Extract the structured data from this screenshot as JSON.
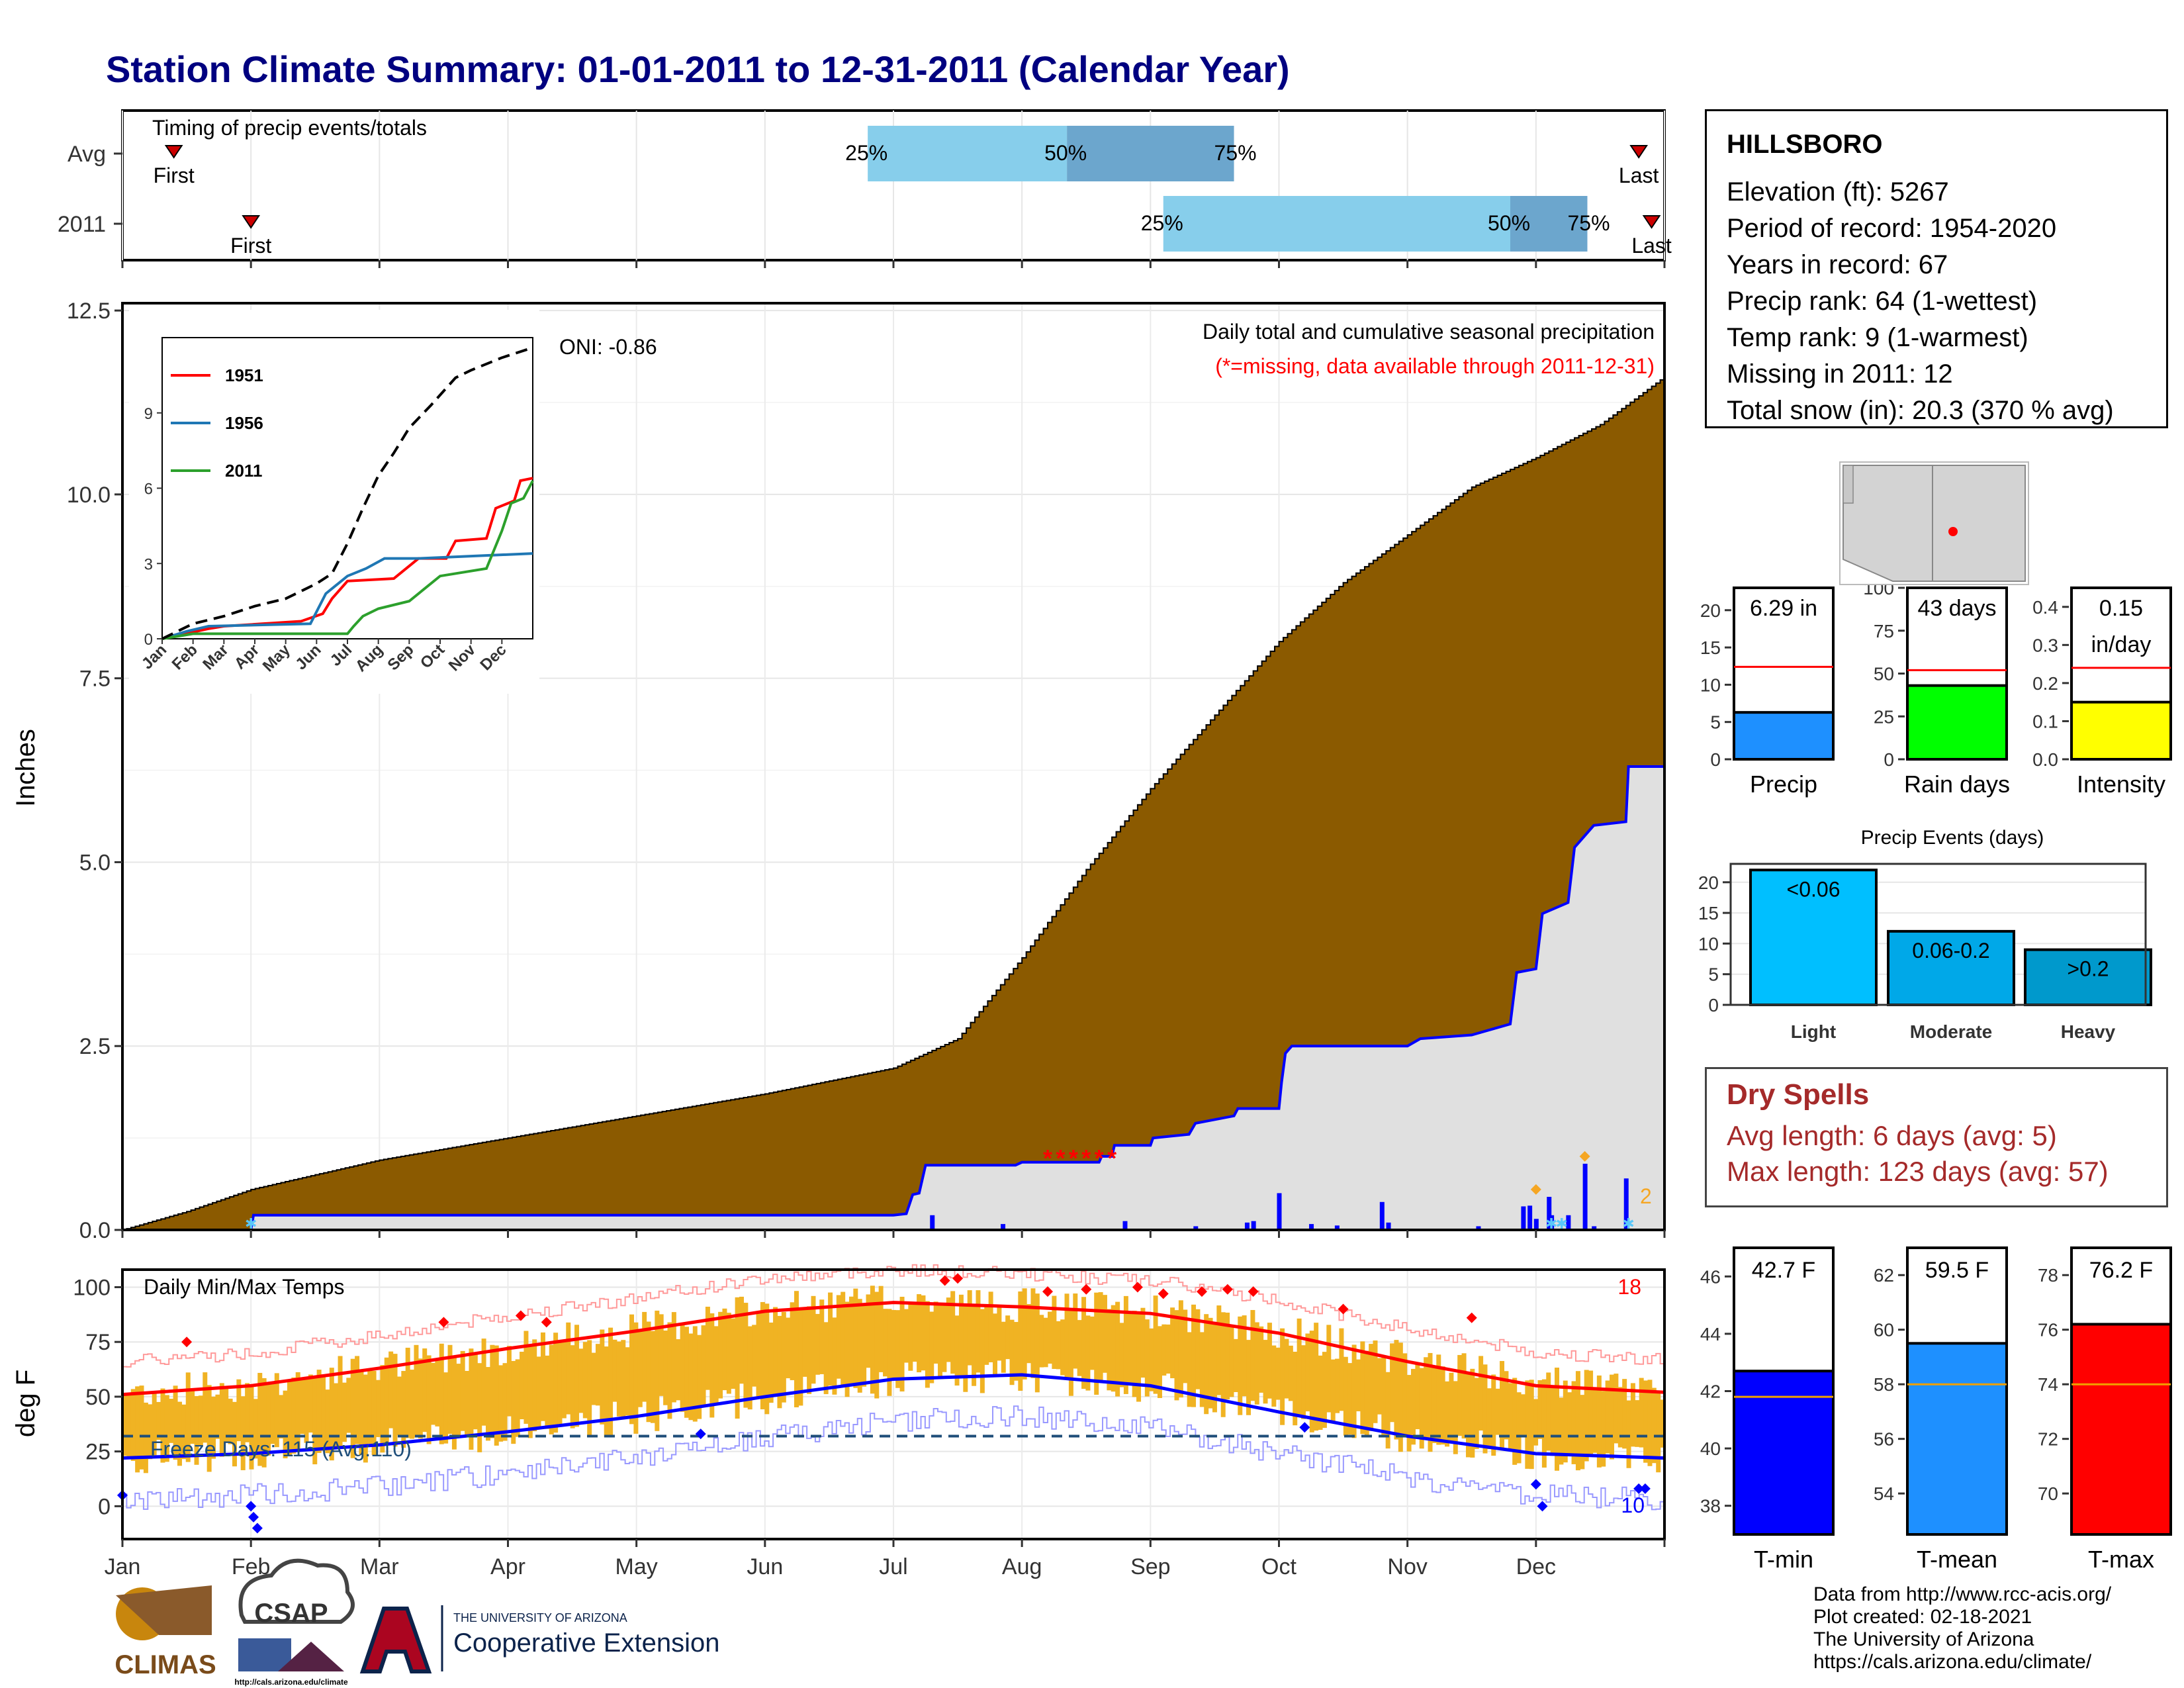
{
  "title": "Station Climate Summary: 01-01-2011 to 12-31-2011 (Calendar Year)",
  "colors": {
    "title": "#000080",
    "precip_fill": "#8B5A00",
    "cum_line": "#0000ff",
    "quartile_light": "#87CEEB",
    "quartile_dark": "#6CA6CD",
    "dry_text": "#a52a2a",
    "tmax": "#ff0000",
    "tmin": "#0000ff",
    "daily_bar": "#F0B323"
  },
  "timing": {
    "title": "Timing of precip events/totals",
    "rows": [
      {
        "label": "Avg",
        "first_month": 0.4,
        "last_month": 11.8,
        "q25": 5.8,
        "q50": 7.35,
        "q75": 8.65,
        "first_label": "First",
        "last_label": "Last",
        "p25": "25%",
        "p50": "50%",
        "p75": "75%"
      },
      {
        "label": "2011",
        "first_month": 1.0,
        "last_month": 11.9,
        "q25": 8.1,
        "q50": 10.8,
        "q75": 11.4,
        "first_label": "First",
        "last_label": "Last",
        "p25": "25%",
        "p50": "50%",
        "p75": "75%"
      }
    ]
  },
  "station": {
    "name": "HILLSBORO",
    "lines": [
      "Elevation (ft): 5267",
      "Period of record: 1954-2020",
      "Years in record: 67",
      "Precip rank: 64 (1-wettest)",
      "Temp rank: 9 (1-warmest)",
      "Missing in 2011: 12",
      "Total snow (in): 20.3 (370 % avg)"
    ]
  },
  "main_chart": {
    "ylabel": "Inches",
    "legend_title": "Daily total and cumulative seasonal precipitation",
    "missing_note": "(*=missing, data available through 2011-12-31)",
    "oni": "ONI: -0.86",
    "count_label": "2",
    "yticks": [
      "0.0",
      "2.5",
      "5.0",
      "7.5",
      "10.0",
      "12.5"
    ],
    "ylim": [
      0,
      12.6
    ],
    "avg_cumulative": [
      [
        0,
        0
      ],
      [
        0.5,
        0.25
      ],
      [
        1,
        0.55
      ],
      [
        2,
        0.95
      ],
      [
        3,
        1.25
      ],
      [
        4,
        1.55
      ],
      [
        5,
        1.85
      ],
      [
        6,
        2.2
      ],
      [
        6.5,
        2.6
      ],
      [
        7,
        3.7
      ],
      [
        7.5,
        4.9
      ],
      [
        8,
        6.0
      ],
      [
        8.5,
        7.0
      ],
      [
        9,
        8.0
      ],
      [
        9.5,
        8.8
      ],
      [
        10,
        9.45
      ],
      [
        10.5,
        10.1
      ],
      [
        11,
        10.5
      ],
      [
        11.5,
        10.95
      ],
      [
        12,
        11.6
      ]
    ],
    "obs_cumulative": [
      [
        0,
        0
      ],
      [
        1.0,
        0.0
      ],
      [
        1.02,
        0.2
      ],
      [
        6.0,
        0.2
      ],
      [
        6.1,
        0.22
      ],
      [
        6.15,
        0.48
      ],
      [
        6.2,
        0.5
      ],
      [
        6.25,
        0.88
      ],
      [
        6.95,
        0.88
      ],
      [
        7.0,
        0.92
      ],
      [
        7.6,
        0.92
      ],
      [
        7.62,
        1.0
      ],
      [
        7.7,
        1.0
      ],
      [
        7.72,
        1.15
      ],
      [
        8.0,
        1.15
      ],
      [
        8.02,
        1.25
      ],
      [
        8.3,
        1.3
      ],
      [
        8.35,
        1.45
      ],
      [
        8.65,
        1.55
      ],
      [
        8.68,
        1.65
      ],
      [
        9.0,
        1.65
      ],
      [
        9.02,
        2.0
      ],
      [
        9.05,
        2.4
      ],
      [
        9.1,
        2.5
      ],
      [
        10.0,
        2.5
      ],
      [
        10.1,
        2.6
      ],
      [
        10.5,
        2.65
      ],
      [
        10.8,
        2.8
      ],
      [
        10.85,
        3.5
      ],
      [
        11.0,
        3.55
      ],
      [
        11.05,
        4.3
      ],
      [
        11.25,
        4.45
      ],
      [
        11.3,
        5.2
      ],
      [
        11.4,
        5.4
      ],
      [
        11.45,
        5.5
      ],
      [
        11.7,
        5.55
      ],
      [
        11.72,
        6.3
      ],
      [
        12.0,
        6.3
      ]
    ],
    "daily_bars": [
      [
        6.3,
        0.2
      ],
      [
        6.85,
        0.08
      ],
      [
        7.8,
        0.12
      ],
      [
        8.35,
        0.05
      ],
      [
        8.75,
        0.1
      ],
      [
        8.8,
        0.12
      ],
      [
        9.0,
        0.5
      ],
      [
        9.25,
        0.08
      ],
      [
        9.45,
        0.06
      ],
      [
        9.8,
        0.38
      ],
      [
        9.85,
        0.1
      ],
      [
        10.55,
        0.05
      ],
      [
        10.9,
        0.32
      ],
      [
        10.95,
        0.33
      ],
      [
        11.0,
        0.15
      ],
      [
        11.1,
        0.45
      ],
      [
        11.12,
        0.2
      ],
      [
        11.25,
        0.2
      ],
      [
        11.38,
        0.9
      ],
      [
        11.45,
        0.05
      ],
      [
        11.7,
        0.7
      ]
    ],
    "missing_days": [
      7.2,
      7.3,
      7.4,
      7.5,
      7.6,
      7.7
    ],
    "event_markers": [
      11.17,
      11.55
    ]
  },
  "inset": {
    "legend": [
      "1951",
      "1956",
      "2011"
    ],
    "yticks": [
      "0",
      "3",
      "6",
      "9"
    ],
    "months": [
      "Jan",
      "Feb",
      "Mar",
      "Apr",
      "May",
      "Jun",
      "Jul",
      "Aug",
      "Sep",
      "Oct",
      "Nov",
      "Dec"
    ],
    "series": [
      {
        "name": "1951",
        "color": "#ff0000",
        "points": [
          [
            0,
            0
          ],
          [
            1.5,
            0.4
          ],
          [
            2,
            0.5
          ],
          [
            4.5,
            0.7
          ],
          [
            5.2,
            1.0
          ],
          [
            5.5,
            1.6
          ],
          [
            6,
            2.3
          ],
          [
            7.5,
            2.4
          ],
          [
            8.3,
            3.2
          ],
          [
            9.2,
            3.2
          ],
          [
            9.5,
            3.9
          ],
          [
            10.5,
            4.0
          ],
          [
            10.8,
            5.2
          ],
          [
            11.4,
            5.5
          ],
          [
            11.6,
            6.3
          ],
          [
            12,
            6.4
          ]
        ]
      },
      {
        "name": "1956",
        "color": "#1f77b4",
        "points": [
          [
            0,
            0
          ],
          [
            0.8,
            0.3
          ],
          [
            1.5,
            0.5
          ],
          [
            4.8,
            0.6
          ],
          [
            5.3,
            1.8
          ],
          [
            6,
            2.5
          ],
          [
            6.6,
            2.8
          ],
          [
            7.2,
            3.2
          ],
          [
            8.3,
            3.2
          ],
          [
            12,
            3.4
          ]
        ]
      },
      {
        "name": "2011",
        "color": "#2ca02c",
        "points": [
          [
            0,
            0
          ],
          [
            1,
            0.2
          ],
          [
            6,
            0.2
          ],
          [
            6.2,
            0.5
          ],
          [
            6.5,
            0.9
          ],
          [
            7,
            1.2
          ],
          [
            8,
            1.5
          ],
          [
            9,
            2.5
          ],
          [
            10.5,
            2.8
          ],
          [
            11,
            4.3
          ],
          [
            11.3,
            5.4
          ],
          [
            11.7,
            5.6
          ],
          [
            12,
            6.3
          ]
        ]
      },
      {
        "name": "avg",
        "color": "#000000",
        "points": [
          [
            0,
            0
          ],
          [
            1,
            0.6
          ],
          [
            2,
            0.9
          ],
          [
            3,
            1.3
          ],
          [
            4,
            1.6
          ],
          [
            5,
            2.2
          ],
          [
            5.5,
            2.6
          ],
          [
            6,
            3.8
          ],
          [
            6.5,
            5.2
          ],
          [
            7,
            6.5
          ],
          [
            7.5,
            7.4
          ],
          [
            8,
            8.4
          ],
          [
            8.7,
            9.3
          ],
          [
            9.5,
            10.4
          ],
          [
            10,
            10.7
          ],
          [
            11,
            11.2
          ],
          [
            12,
            11.6
          ]
        ]
      }
    ]
  },
  "precip_summary": [
    {
      "label": "Precip",
      "value_text": "6.29 in",
      "value": 6.29,
      "avg": 12.4,
      "ymax": 23,
      "yticks": [
        "0",
        "5",
        "10",
        "15",
        "20"
      ],
      "tickvals": [
        0,
        5,
        10,
        15,
        20
      ],
      "color": "#1E90FF"
    },
    {
      "label": "Rain days",
      "value_text": "43 days",
      "value": 43,
      "avg": 52,
      "ymax": 100,
      "yticks": [
        "0",
        "25",
        "50",
        "75",
        "100"
      ],
      "tickvals": [
        0,
        25,
        50,
        75,
        100
      ],
      "color": "#00FF00"
    },
    {
      "label": "Intensity",
      "value_text": "0.15",
      "value_text2": "in/day",
      "value": 0.15,
      "avg": 0.24,
      "ymax": 0.45,
      "yticks": [
        "0.0",
        "0.1",
        "0.2",
        "0.3",
        "0.4"
      ],
      "tickvals": [
        0,
        0.1,
        0.2,
        0.3,
        0.4
      ],
      "color": "#FFFF00"
    }
  ],
  "precip_events": {
    "title": "Precip Events (days)",
    "yticks": [
      "0",
      "5",
      "10",
      "15",
      "20"
    ],
    "bars": [
      {
        "label": "Light",
        "value": 22,
        "text": "<0.06",
        "color": "#00BFFF"
      },
      {
        "label": "Moderate",
        "value": 12,
        "text": "0.06-0.2",
        "color": "#00A8E8"
      },
      {
        "label": "Heavy",
        "value": 9,
        "text": ">0.2",
        "color": "#0099CC"
      }
    ]
  },
  "dry_spells": {
    "title": "Dry Spells",
    "lines": [
      "Avg length: 6 days (avg: 5)",
      "Max length: 123 days (avg: 57)"
    ]
  },
  "temps_chart": {
    "ylabel": "deg F",
    "title": "Daily Min/Max Temps",
    "freeze": "Freeze Days: 115 (Avg:110)",
    "max_count": "18",
    "min_count": "10",
    "yticks": [
      "0",
      "25",
      "50",
      "75",
      "100"
    ],
    "ylim": [
      -15,
      108
    ],
    "freeze_line": 32,
    "avg_tmax": [
      [
        0,
        51
      ],
      [
        1,
        55
      ],
      [
        2,
        63
      ],
      [
        3,
        72
      ],
      [
        4,
        80
      ],
      [
        5,
        89
      ],
      [
        6,
        93
      ],
      [
        7,
        91
      ],
      [
        8,
        88
      ],
      [
        9,
        79
      ],
      [
        10,
        66
      ],
      [
        11,
        55
      ],
      [
        12,
        52
      ]
    ],
    "avg_tmin": [
      [
        0,
        22
      ],
      [
        1,
        24
      ],
      [
        2,
        28
      ],
      [
        3,
        34
      ],
      [
        4,
        41
      ],
      [
        5,
        50
      ],
      [
        6,
        58
      ],
      [
        7,
        60
      ],
      [
        8,
        55
      ],
      [
        9,
        43
      ],
      [
        10,
        32
      ],
      [
        11,
        24
      ],
      [
        12,
        22
      ]
    ],
    "months": [
      "Jan",
      "Feb",
      "Mar",
      "Apr",
      "May",
      "Jun",
      "Jul",
      "Aug",
      "Sep",
      "Oct",
      "Nov",
      "Dec"
    ]
  },
  "temp_summary": [
    {
      "label": "T-min",
      "value_text": "42.7 F",
      "value": 42.7,
      "avg": 41.8,
      "ylim": [
        37,
        47
      ],
      "yticks": [
        "38",
        "40",
        "42",
        "44",
        "46"
      ],
      "tickvals": [
        38,
        40,
        42,
        44,
        46
      ],
      "color": "#0000FF"
    },
    {
      "label": "T-mean",
      "value_text": "59.5 F",
      "value": 59.5,
      "avg": 58.0,
      "ylim": [
        52.5,
        63
      ],
      "yticks": [
        "54",
        "56",
        "58",
        "60",
        "62"
      ],
      "tickvals": [
        54,
        56,
        58,
        60,
        62
      ],
      "color": "#1E90FF"
    },
    {
      "label": "T-max",
      "value_text": "76.2 F",
      "value": 76.2,
      "avg": 74.0,
      "ylim": [
        68.5,
        79
      ],
      "yticks": [
        "70",
        "72",
        "74",
        "76",
        "78"
      ],
      "tickvals": [
        70,
        72,
        74,
        76,
        78
      ],
      "color": "#FF0000"
    }
  ],
  "credits": [
    "Data from http://www.rcc-acis.org/",
    "Plot created: 02-18-2021",
    "The University of Arizona",
    "https://cals.arizona.edu/climate/"
  ],
  "logos": {
    "climas": "CLIMAS",
    "csap": "CSAP",
    "csap_url": "http://cals.arizona.edu/climate",
    "ua_top": "THE UNIVERSITY OF ARIZONA",
    "ua_bottom": "Cooperative Extension"
  }
}
